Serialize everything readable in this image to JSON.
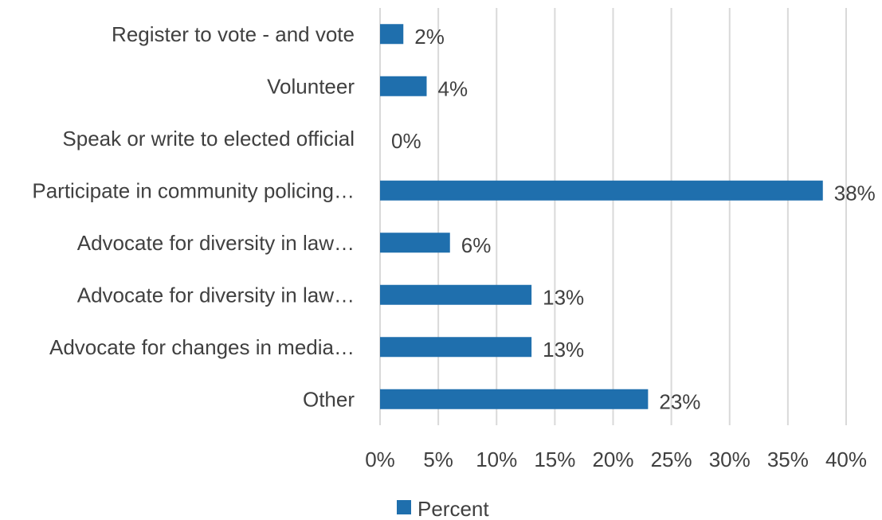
{
  "chart_data": {
    "type": "bar",
    "orientation": "horizontal",
    "title": "",
    "xlabel": "",
    "ylabel": "",
    "categories": [
      "Register to vote - and vote",
      "Volunteer",
      "Speak or write to elected official",
      "Participate in community policing…",
      "Advocate for diversity in law…",
      "Advocate for diversity in law…",
      "Advocate for changes in media…",
      "Other"
    ],
    "series": [
      {
        "name": "Percent",
        "values": [
          2,
          4,
          0,
          38,
          6,
          13,
          13,
          23
        ],
        "data_labels": [
          "2%",
          "4%",
          "0%",
          "38%",
          "6%",
          "13%",
          "13%",
          "23%"
        ],
        "color": "#1f6fad"
      }
    ],
    "xlim": [
      0,
      40
    ],
    "x_ticks": [
      0,
      5,
      10,
      15,
      20,
      25,
      30,
      35,
      40
    ],
    "x_tick_labels": [
      "0%",
      "5%",
      "10%",
      "15%",
      "20%",
      "25%",
      "30%",
      "35%",
      "40%"
    ],
    "grid": "vertical",
    "legend": "bottom-center"
  },
  "colors": {
    "bar": "#1f6fad",
    "grid": "#d9d9d9",
    "text": "#404040"
  }
}
